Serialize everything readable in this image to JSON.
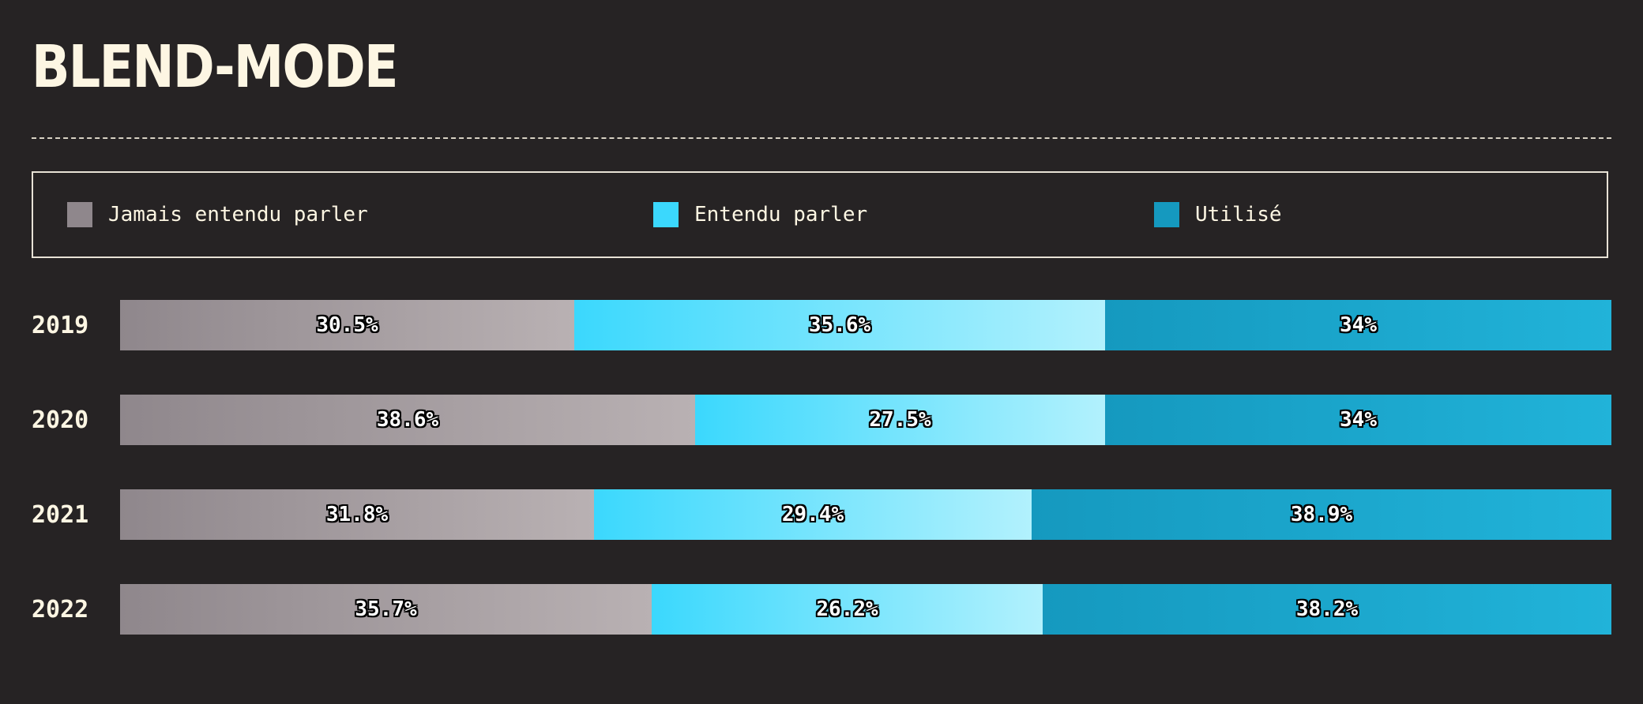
{
  "title": "BLEND-MODE",
  "chart_data": {
    "type": "bar",
    "orientation": "horizontal",
    "stacked": true,
    "title": "BLEND-MODE",
    "categories": [
      "2019",
      "2020",
      "2021",
      "2022"
    ],
    "series": [
      {
        "name": "Jamais entendu parler",
        "values": [
          30.5,
          38.6,
          31.8,
          35.7
        ],
        "labels": [
          "30.5%",
          "38.6%",
          "31.8%",
          "35.7%"
        ],
        "color_from": "#8f878c",
        "color_to": "#b9b1b3"
      },
      {
        "name": "Entendu parler",
        "values": [
          35.6,
          27.5,
          29.4,
          26.2
        ],
        "labels": [
          "35.6%",
          "27.5%",
          "29.4%",
          "26.2%"
        ],
        "color_from": "#3bd8fd",
        "color_to": "#b2f1fd"
      },
      {
        "name": "Utilisé",
        "values": [
          34,
          34,
          38.9,
          38.2
        ],
        "labels": [
          "34%",
          "34%",
          "38.9%",
          "38.2%"
        ],
        "color_from": "#1599bf",
        "color_to": "#21b3d9"
      }
    ],
    "legend_position": "top",
    "grid": false
  }
}
